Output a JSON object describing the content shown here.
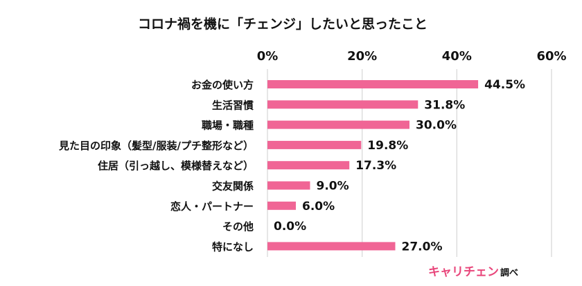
{
  "chart_data": {
    "type": "bar",
    "orientation": "horizontal",
    "title": "コロナ禍を機に「チェンジ」したいと思ったこと",
    "categories": [
      "お金の使い方",
      "生活習慣",
      "職場・職種",
      "見た目の印象（髪型/服装/プチ整形など）",
      "住居（引っ越し、模様替えなど）",
      "交友関係",
      "恋人・パートナー",
      "その他",
      "特になし"
    ],
    "values": [
      44.5,
      31.8,
      30.0,
      19.8,
      17.3,
      9.0,
      6.0,
      0.0,
      27.0
    ],
    "value_labels": [
      "44.5%",
      "31.8%",
      "30.0%",
      "19.8%",
      "17.3%",
      "9.0%",
      "6.0%",
      "0.0%",
      "27.0%"
    ],
    "xlim": [
      0,
      60
    ],
    "xticks": [
      0,
      20,
      40,
      60
    ],
    "xtick_labels": [
      "0%",
      "20%",
      "40%",
      "60%"
    ],
    "axis_position": "top",
    "grid": true,
    "xlabel": "",
    "ylabel": "",
    "bar_color": "#f06595",
    "grid_color": "#d9d9d9"
  },
  "source": {
    "brand": "キャリチェン",
    "suffix": "調べ",
    "brand_color": "#e8457a"
  }
}
